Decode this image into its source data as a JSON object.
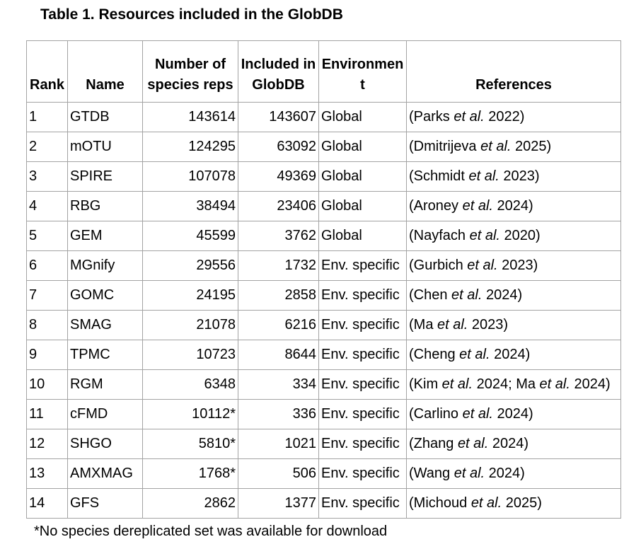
{
  "page": {
    "title": "Table 1. Resources included in the GlobDB",
    "footnote": "*No species dereplicated set was available for download"
  },
  "colors": {
    "background": "#ffffff",
    "text": "#000000",
    "table_border": "#a3a3a3"
  },
  "table": {
    "columns": [
      "Rank",
      "Name",
      "Number of species reps",
      "Included in GlobDB",
      "Environment",
      "References"
    ],
    "rows": [
      {
        "rank": "1",
        "name": "GTDB",
        "species_reps": "143614",
        "included_in_globdb": "143607",
        "environment": "Global",
        "references": [
          {
            "text": "(Parks ",
            "italic": false
          },
          {
            "text": "et al.",
            "italic": true
          },
          {
            "text": " 2022)",
            "italic": false
          }
        ]
      },
      {
        "rank": "2",
        "name": "mOTU",
        "species_reps": "124295",
        "included_in_globdb": "63092",
        "environment": "Global",
        "references": [
          {
            "text": "(Dmitrijeva ",
            "italic": false
          },
          {
            "text": "et al.",
            "italic": true
          },
          {
            "text": " 2025)",
            "italic": false
          }
        ]
      },
      {
        "rank": "3",
        "name": "SPIRE",
        "species_reps": "107078",
        "included_in_globdb": "49369",
        "environment": "Global",
        "references": [
          {
            "text": "(Schmidt ",
            "italic": false
          },
          {
            "text": "et al.",
            "italic": true
          },
          {
            "text": " 2023)",
            "italic": false
          }
        ]
      },
      {
        "rank": "4",
        "name": "RBG",
        "species_reps": "38494",
        "included_in_globdb": "23406",
        "environment": "Global",
        "references": [
          {
            "text": "(Aroney ",
            "italic": false
          },
          {
            "text": "et al.",
            "italic": true
          },
          {
            "text": " 2024)",
            "italic": false
          }
        ]
      },
      {
        "rank": "5",
        "name": "GEM",
        "species_reps": "45599",
        "included_in_globdb": "3762",
        "environment": "Global",
        "references": [
          {
            "text": "(Nayfach ",
            "italic": false
          },
          {
            "text": "et al.",
            "italic": true
          },
          {
            "text": " 2020)",
            "italic": false
          }
        ]
      },
      {
        "rank": "6",
        "name": "MGnify",
        "species_reps": "29556",
        "included_in_globdb": "1732",
        "environment": "Env. specific",
        "references": [
          {
            "text": "(Gurbich ",
            "italic": false
          },
          {
            "text": "et al.",
            "italic": true
          },
          {
            "text": " 2023)",
            "italic": false
          }
        ]
      },
      {
        "rank": "7",
        "name": "GOMC",
        "species_reps": "24195",
        "included_in_globdb": "2858",
        "environment": "Env. specific",
        "references": [
          {
            "text": "(Chen ",
            "italic": false
          },
          {
            "text": "et al.",
            "italic": true
          },
          {
            "text": " 2024)",
            "italic": false
          }
        ]
      },
      {
        "rank": "8",
        "name": "SMAG",
        "species_reps": "21078",
        "included_in_globdb": "6216",
        "environment": "Env. specific",
        "references": [
          {
            "text": "(Ma ",
            "italic": false
          },
          {
            "text": "et al.",
            "italic": true
          },
          {
            "text": " 2023)",
            "italic": false
          }
        ]
      },
      {
        "rank": "9",
        "name": "TPMC",
        "species_reps": "10723",
        "included_in_globdb": "8644",
        "environment": "Env. specific",
        "references": [
          {
            "text": "(Cheng ",
            "italic": false
          },
          {
            "text": "et al.",
            "italic": true
          },
          {
            "text": " 2024)",
            "italic": false
          }
        ]
      },
      {
        "rank": "10",
        "name": "RGM",
        "species_reps": "6348",
        "included_in_globdb": "334",
        "environment": "Env. specific",
        "references": [
          {
            "text": "(Kim ",
            "italic": false
          },
          {
            "text": "et al.",
            "italic": true
          },
          {
            "text": " 2024; Ma ",
            "italic": false
          },
          {
            "text": "et al.",
            "italic": true
          },
          {
            "text": " 2024)",
            "italic": false
          }
        ]
      },
      {
        "rank": "11",
        "name": "cFMD",
        "species_reps": "10112*",
        "included_in_globdb": "336",
        "environment": "Env. specific",
        "references": [
          {
            "text": "(Carlino ",
            "italic": false
          },
          {
            "text": "et al.",
            "italic": true
          },
          {
            "text": " 2024)",
            "italic": false
          }
        ]
      },
      {
        "rank": "12",
        "name": "SHGO",
        "species_reps": "5810*",
        "included_in_globdb": "1021",
        "environment": "Env. specific",
        "references": [
          {
            "text": "(Zhang ",
            "italic": false
          },
          {
            "text": "et al.",
            "italic": true
          },
          {
            "text": " 2024)",
            "italic": false
          }
        ]
      },
      {
        "rank": "13",
        "name": "AMXMAG",
        "species_reps": "1768*",
        "included_in_globdb": "506",
        "environment": "Env. specific",
        "references": [
          {
            "text": "(Wang ",
            "italic": false
          },
          {
            "text": "et al.",
            "italic": true
          },
          {
            "text": " 2024)",
            "italic": false
          }
        ]
      },
      {
        "rank": "14",
        "name": "GFS",
        "species_reps": "2862",
        "included_in_globdb": "1377",
        "environment": "Env. specific",
        "references": [
          {
            "text": "(Michoud ",
            "italic": false
          },
          {
            "text": "et al.",
            "italic": true
          },
          {
            "text": " 2025)",
            "italic": false
          }
        ]
      }
    ]
  }
}
